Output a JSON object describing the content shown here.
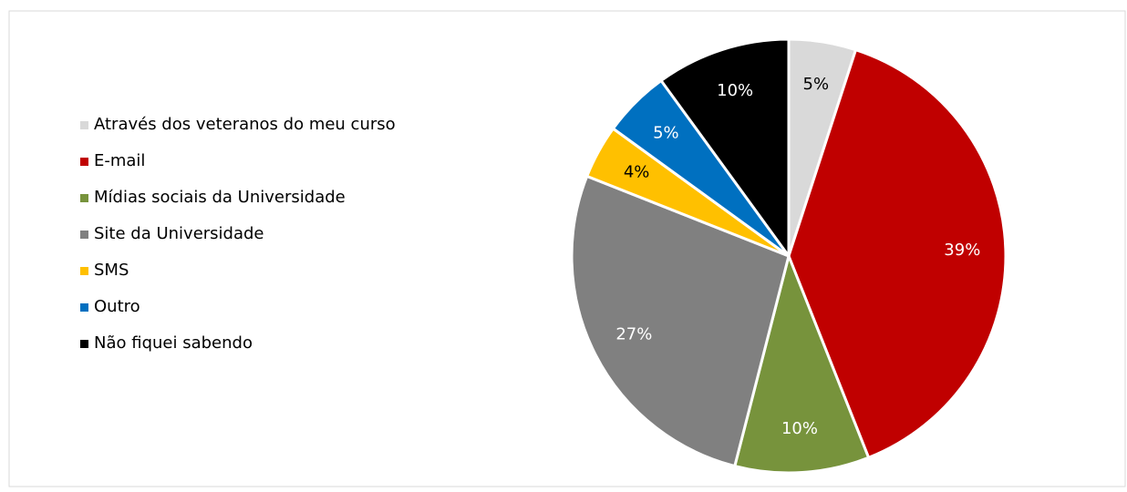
{
  "chart_data": {
    "type": "pie",
    "categories": [
      "Através dos veteranos do meu curso",
      "E-mail",
      "Mídias sociais da Universidade",
      "Site da Universidade",
      "SMS",
      "Outro",
      "Não fiquei sabendo"
    ],
    "values": [
      5,
      39,
      10,
      27,
      4,
      5,
      10
    ],
    "value_labels": [
      "5%",
      "39%",
      "10%",
      "27%",
      "4%",
      "5%",
      "10%"
    ],
    "colors": [
      "#d9d9d9",
      "#c00000",
      "#77933c",
      "#808080",
      "#ffc000",
      "#0070c0",
      "#000000"
    ],
    "legend": "left"
  }
}
